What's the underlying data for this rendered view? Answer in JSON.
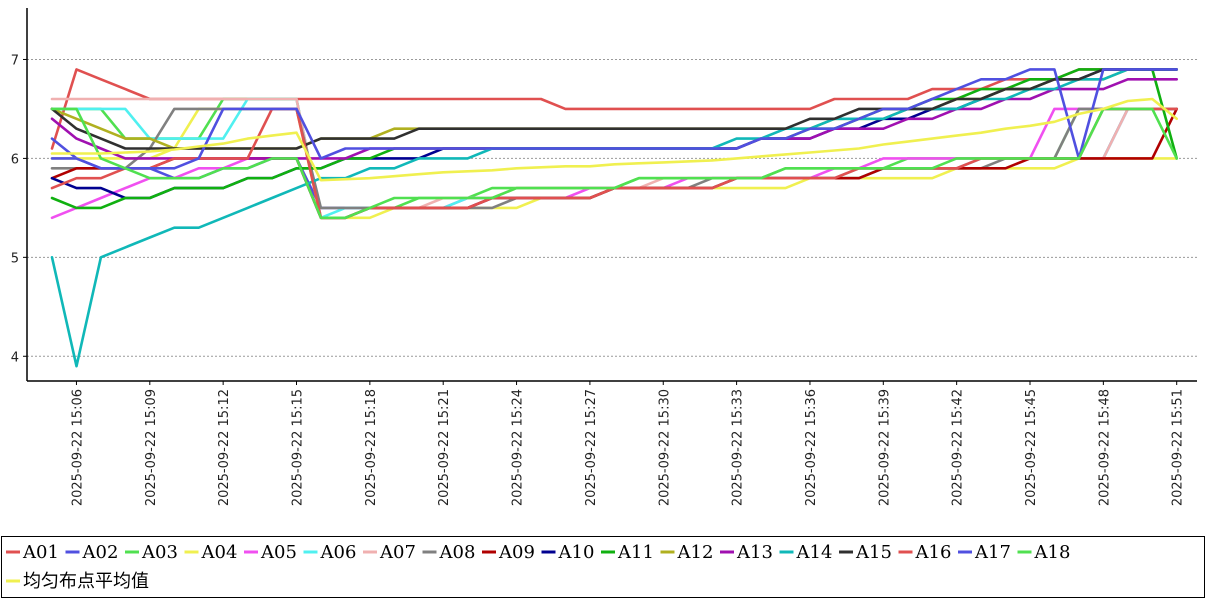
{
  "chart_data": {
    "type": "line",
    "title": "",
    "xlabel": "",
    "ylabel": "",
    "ylim": [
      3.75,
      7.5
    ],
    "yticks": [
      4,
      5,
      6,
      7
    ],
    "grid": "horizontal dotted",
    "legend_position": "bottom",
    "x": [
      "2025-09-22 15:05",
      "2025-09-22 15:06",
      "2025-09-22 15:07",
      "2025-09-22 15:08",
      "2025-09-22 15:09",
      "2025-09-22 15:10",
      "2025-09-22 15:11",
      "2025-09-22 15:12",
      "2025-09-22 15:13",
      "2025-09-22 15:14",
      "2025-09-22 15:15",
      "2025-09-22 15:16",
      "2025-09-22 15:17",
      "2025-09-22 15:18",
      "2025-09-22 15:19",
      "2025-09-22 15:20",
      "2025-09-22 15:21",
      "2025-09-22 15:22",
      "2025-09-22 15:23",
      "2025-09-22 15:24",
      "2025-09-22 15:25",
      "2025-09-22 15:26",
      "2025-09-22 15:27",
      "2025-09-22 15:28",
      "2025-09-22 15:29",
      "2025-09-22 15:30",
      "2025-09-22 15:31",
      "2025-09-22 15:32",
      "2025-09-22 15:33",
      "2025-09-22 15:34",
      "2025-09-22 15:35",
      "2025-09-22 15:36",
      "2025-09-22 15:37",
      "2025-09-22 15:38",
      "2025-09-22 15:39",
      "2025-09-22 15:40",
      "2025-09-22 15:41",
      "2025-09-22 15:42",
      "2025-09-22 15:43",
      "2025-09-22 15:44",
      "2025-09-22 15:45",
      "2025-09-22 15:46",
      "2025-09-22 15:47",
      "2025-09-22 15:48",
      "2025-09-22 15:49",
      "2025-09-22 15:50",
      "2025-09-22 15:51"
    ],
    "xtick_labels": [
      "2025-09-22 15:06",
      "2025-09-22 15:09",
      "2025-09-22 15:12",
      "2025-09-22 15:15",
      "2025-09-22 15:18",
      "2025-09-22 15:21",
      "2025-09-22 15:24",
      "2025-09-22 15:27",
      "2025-09-22 15:30",
      "2025-09-22 15:33",
      "2025-09-22 15:36",
      "2025-09-22 15:39",
      "2025-09-22 15:42",
      "2025-09-22 15:45",
      "2025-09-22 15:48",
      "2025-09-22 15:51"
    ],
    "series": [
      {
        "name": "A01",
        "color": "#e05050",
        "values": [
          6.1,
          6.9,
          6.8,
          6.7,
          6.6,
          6.6,
          6.6,
          6.6,
          6.6,
          6.6,
          6.6,
          6.6,
          6.6,
          6.6,
          6.6,
          6.6,
          6.6,
          6.6,
          6.6,
          6.6,
          6.6,
          6.5,
          6.5,
          6.5,
          6.5,
          6.5,
          6.5,
          6.5,
          6.5,
          6.5,
          6.5,
          6.5,
          6.6,
          6.6,
          6.6,
          6.6,
          6.7,
          6.7,
          6.7,
          6.8,
          6.8,
          6.8,
          6.9,
          6.9,
          6.9,
          6.9,
          6.9
        ]
      },
      {
        "name": "A02",
        "color": "#5050e0",
        "values": [
          6.2,
          6.0,
          5.9,
          5.9,
          5.9,
          5.8,
          5.8,
          5.9,
          5.9,
          6.0,
          6.0,
          5.5,
          5.5,
          5.5,
          5.5,
          5.5,
          5.5,
          5.5,
          5.6,
          5.6,
          5.6,
          5.6,
          5.6,
          5.7,
          5.7,
          5.7,
          5.7,
          5.7,
          5.8,
          5.8,
          5.8,
          5.8,
          5.8,
          5.9,
          5.9,
          5.9,
          5.9,
          5.9,
          6.0,
          6.0,
          6.0,
          6.0,
          6.0,
          6.0,
          6.5,
          6.5,
          6.5
        ]
      },
      {
        "name": "A03",
        "color": "#50e050",
        "values": [
          6.5,
          6.5,
          6.5,
          6.2,
          6.2,
          6.2,
          6.2,
          6.6,
          6.6,
          6.6,
          6.6,
          5.4,
          5.4,
          5.5,
          5.5,
          5.6,
          5.6,
          5.6,
          5.7,
          5.7,
          5.7,
          5.7,
          5.7,
          5.7,
          5.8,
          5.8,
          5.8,
          5.8,
          5.8,
          5.8,
          5.9,
          5.9,
          5.9,
          5.9,
          5.9,
          6.0,
          6.0,
          6.0,
          6.0,
          6.0,
          6.0,
          6.0,
          6.5,
          6.5,
          6.5,
          6.5,
          6.5
        ]
      },
      {
        "name": "A04",
        "color": "#f0f050",
        "values": [
          6.0,
          6.0,
          6.0,
          6.0,
          6.0,
          6.1,
          6.5,
          6.5,
          6.5,
          6.5,
          6.5,
          5.4,
          5.4,
          5.4,
          5.5,
          5.5,
          5.5,
          5.5,
          5.5,
          5.5,
          5.6,
          5.6,
          5.6,
          5.7,
          5.7,
          5.7,
          5.7,
          5.7,
          5.7,
          5.7,
          5.7,
          5.8,
          5.8,
          5.8,
          5.8,
          5.8,
          5.8,
          5.9,
          5.9,
          5.9,
          5.9,
          5.9,
          6.0,
          6.0,
          6.0,
          6.0,
          6.0
        ]
      },
      {
        "name": "A05",
        "color": "#f050f0",
        "values": [
          5.4,
          5.5,
          5.6,
          5.7,
          5.8,
          5.8,
          5.9,
          5.9,
          6.0,
          6.0,
          6.0,
          5.4,
          5.4,
          5.5,
          5.5,
          5.5,
          5.5,
          5.6,
          5.6,
          5.6,
          5.6,
          5.6,
          5.7,
          5.7,
          5.7,
          5.7,
          5.8,
          5.8,
          5.8,
          5.8,
          5.8,
          5.8,
          5.9,
          5.9,
          6.0,
          6.0,
          6.0,
          6.0,
          6.0,
          6.0,
          6.0,
          6.5,
          6.5,
          6.5,
          6.5,
          6.5,
          6.5
        ]
      },
      {
        "name": "A06",
        "color": "#50f0f0",
        "values": [
          6.5,
          6.5,
          6.5,
          6.5,
          6.2,
          6.2,
          6.2,
          6.2,
          6.6,
          6.6,
          6.6,
          5.4,
          5.5,
          5.5,
          5.5,
          5.5,
          5.5,
          5.6,
          5.6,
          5.6,
          5.6,
          5.6,
          5.6,
          5.7,
          5.7,
          5.7,
          5.7,
          5.7,
          5.8,
          5.8,
          5.8,
          5.8,
          5.8,
          5.8,
          5.9,
          5.9,
          5.9,
          5.9,
          6.0,
          6.0,
          6.0,
          6.0,
          6.0,
          6.0,
          6.5,
          6.5,
          6.5
        ]
      },
      {
        "name": "A07",
        "color": "#f0b0b0",
        "values": [
          6.6,
          6.6,
          6.6,
          6.6,
          6.6,
          6.6,
          6.6,
          6.6,
          6.6,
          6.6,
          6.6,
          5.4,
          5.4,
          5.5,
          5.5,
          5.5,
          5.6,
          5.6,
          5.6,
          5.7,
          5.7,
          5.7,
          5.7,
          5.7,
          5.7,
          5.8,
          5.8,
          5.8,
          5.8,
          5.8,
          5.8,
          5.8,
          5.8,
          5.9,
          5.9,
          5.9,
          5.9,
          5.9,
          6.0,
          6.0,
          6.0,
          6.0,
          6.0,
          6.0,
          6.5,
          6.5,
          6.5
        ]
      },
      {
        "name": "A08",
        "color": "#808080",
        "values": [
          5.9,
          5.9,
          5.9,
          5.9,
          6.1,
          6.5,
          6.5,
          6.5,
          6.5,
          6.5,
          6.5,
          5.5,
          5.5,
          5.5,
          5.5,
          5.5,
          5.5,
          5.5,
          5.5,
          5.6,
          5.6,
          5.6,
          5.6,
          5.7,
          5.7,
          5.7,
          5.7,
          5.8,
          5.8,
          5.8,
          5.8,
          5.8,
          5.8,
          5.8,
          5.9,
          5.9,
          5.9,
          5.9,
          5.9,
          6.0,
          6.0,
          6.0,
          6.5,
          6.5,
          6.5,
          6.5,
          6.5
        ]
      },
      {
        "name": "A09",
        "color": "#b00000",
        "values": [
          5.8,
          5.9,
          5.9,
          5.9,
          5.9,
          6.0,
          6.0,
          6.0,
          6.0,
          6.0,
          6.0,
          5.4,
          5.4,
          5.5,
          5.5,
          5.5,
          5.5,
          5.5,
          5.6,
          5.6,
          5.6,
          5.6,
          5.6,
          5.7,
          5.7,
          5.7,
          5.7,
          5.7,
          5.8,
          5.8,
          5.8,
          5.8,
          5.8,
          5.8,
          5.9,
          5.9,
          5.9,
          5.9,
          5.9,
          5.9,
          6.0,
          6.0,
          6.0,
          6.0,
          6.0,
          6.0,
          6.5
        ]
      },
      {
        "name": "A10",
        "color": "#000090",
        "values": [
          5.8,
          5.7,
          5.7,
          5.6,
          5.6,
          5.7,
          5.7,
          5.7,
          5.8,
          5.8,
          5.9,
          5.9,
          6.0,
          6.0,
          6.0,
          6.0,
          6.1,
          6.1,
          6.1,
          6.1,
          6.1,
          6.1,
          6.1,
          6.1,
          6.1,
          6.1,
          6.1,
          6.1,
          6.1,
          6.2,
          6.2,
          6.2,
          6.3,
          6.3,
          6.4,
          6.4,
          6.5,
          6.5,
          6.6,
          6.7,
          6.7,
          6.8,
          6.8,
          6.9,
          6.9,
          6.9,
          6.9
        ]
      },
      {
        "name": "A11",
        "color": "#10b010",
        "values": [
          5.6,
          5.5,
          5.5,
          5.6,
          5.6,
          5.7,
          5.7,
          5.7,
          5.8,
          5.8,
          5.9,
          5.9,
          6.0,
          6.0,
          6.1,
          6.1,
          6.1,
          6.1,
          6.1,
          6.1,
          6.1,
          6.1,
          6.1,
          6.1,
          6.1,
          6.1,
          6.1,
          6.1,
          6.1,
          6.2,
          6.2,
          6.3,
          6.3,
          6.4,
          6.5,
          6.5,
          6.6,
          6.6,
          6.7,
          6.7,
          6.8,
          6.8,
          6.9,
          6.9,
          6.9,
          6.9,
          6.0
        ]
      },
      {
        "name": "A12",
        "color": "#b0b020",
        "values": [
          6.5,
          6.4,
          6.3,
          6.2,
          6.2,
          6.1,
          6.1,
          6.1,
          6.1,
          6.1,
          6.1,
          6.2,
          6.2,
          6.2,
          6.3,
          6.3,
          6.3,
          6.3,
          6.3,
          6.3,
          6.3,
          6.3,
          6.3,
          6.3,
          6.3,
          6.3,
          6.3,
          6.3,
          6.3,
          6.3,
          6.3,
          6.3,
          6.4,
          6.4,
          6.4,
          6.5,
          6.5,
          6.6,
          6.6,
          6.7,
          6.7,
          6.8,
          6.8,
          6.8,
          6.9,
          6.9,
          6.9
        ]
      },
      {
        "name": "A13",
        "color": "#a010b0",
        "values": [
          6.4,
          6.2,
          6.1,
          6.0,
          6.0,
          6.0,
          6.0,
          6.0,
          6.0,
          6.0,
          6.0,
          6.0,
          6.0,
          6.1,
          6.1,
          6.1,
          6.1,
          6.1,
          6.1,
          6.1,
          6.1,
          6.1,
          6.1,
          6.1,
          6.1,
          6.1,
          6.1,
          6.1,
          6.1,
          6.2,
          6.2,
          6.2,
          6.3,
          6.3,
          6.3,
          6.4,
          6.4,
          6.5,
          6.5,
          6.6,
          6.6,
          6.7,
          6.7,
          6.7,
          6.8,
          6.8,
          6.8
        ]
      },
      {
        "name": "A14",
        "color": "#10b8b8",
        "values": [
          5.0,
          3.9,
          5.0,
          5.1,
          5.2,
          5.3,
          5.3,
          5.4,
          5.5,
          5.6,
          5.7,
          5.8,
          5.8,
          5.9,
          5.9,
          6.0,
          6.0,
          6.0,
          6.1,
          6.1,
          6.1,
          6.1,
          6.1,
          6.1,
          6.1,
          6.1,
          6.1,
          6.1,
          6.2,
          6.2,
          6.3,
          6.3,
          6.4,
          6.4,
          6.4,
          6.5,
          6.5,
          6.5,
          6.6,
          6.6,
          6.7,
          6.7,
          6.8,
          6.8,
          6.9,
          6.9,
          6.9
        ]
      },
      {
        "name": "A15",
        "color": "#303030",
        "values": [
          6.5,
          6.3,
          6.2,
          6.1,
          6.1,
          6.1,
          6.1,
          6.1,
          6.1,
          6.1,
          6.1,
          6.2,
          6.2,
          6.2,
          6.2,
          6.3,
          6.3,
          6.3,
          6.3,
          6.3,
          6.3,
          6.3,
          6.3,
          6.3,
          6.3,
          6.3,
          6.3,
          6.3,
          6.3,
          6.3,
          6.3,
          6.4,
          6.4,
          6.5,
          6.5,
          6.5,
          6.5,
          6.6,
          6.6,
          6.7,
          6.7,
          6.8,
          6.8,
          6.9,
          6.9,
          6.9,
          6.9
        ]
      },
      {
        "name": "A16",
        "color": "#e05050",
        "values": [
          5.7,
          5.8,
          5.8,
          5.9,
          5.9,
          6.0,
          6.0,
          6.0,
          6.0,
          6.5,
          6.5,
          5.4,
          5.4,
          5.5,
          5.5,
          5.5,
          5.5,
          5.5,
          5.6,
          5.6,
          5.6,
          5.6,
          5.6,
          5.7,
          5.7,
          5.7,
          5.7,
          5.7,
          5.8,
          5.8,
          5.8,
          5.8,
          5.8,
          5.9,
          5.9,
          5.9,
          5.9,
          5.9,
          6.0,
          6.0,
          6.0,
          6.0,
          6.0,
          6.5,
          6.5,
          6.5,
          6.5
        ]
      },
      {
        "name": "A17",
        "color": "#5050e0",
        "values": [
          6.0,
          6.0,
          5.9,
          5.9,
          5.9,
          5.9,
          6.0,
          6.5,
          6.5,
          6.5,
          6.5,
          6.0,
          6.1,
          6.1,
          6.1,
          6.1,
          6.1,
          6.1,
          6.1,
          6.1,
          6.1,
          6.1,
          6.1,
          6.1,
          6.1,
          6.1,
          6.1,
          6.1,
          6.1,
          6.2,
          6.2,
          6.3,
          6.3,
          6.4,
          6.5,
          6.5,
          6.6,
          6.7,
          6.8,
          6.8,
          6.9,
          6.9,
          6.0,
          6.9,
          6.9,
          6.9,
          6.9
        ]
      },
      {
        "name": "A18",
        "color": "#50e050",
        "values": [
          6.5,
          6.5,
          6.0,
          5.9,
          5.8,
          5.8,
          5.8,
          5.9,
          5.9,
          6.0,
          6.0,
          5.4,
          5.4,
          5.5,
          5.6,
          5.6,
          5.6,
          5.6,
          5.6,
          5.7,
          5.7,
          5.7,
          5.7,
          5.7,
          5.8,
          5.8,
          5.8,
          5.8,
          5.8,
          5.8,
          5.9,
          5.9,
          5.9,
          5.9,
          5.9,
          5.9,
          5.9,
          6.0,
          6.0,
          6.0,
          6.0,
          6.0,
          6.0,
          6.5,
          6.5,
          6.5,
          6.0
        ]
      },
      {
        "name": "均匀布点平均值",
        "color": "#f0f050",
        "values": [
          6.05,
          6.05,
          6.05,
          6.06,
          6.07,
          6.09,
          6.12,
          6.15,
          6.2,
          6.23,
          6.26,
          5.78,
          5.79,
          5.8,
          5.82,
          5.84,
          5.86,
          5.87,
          5.88,
          5.9,
          5.91,
          5.92,
          5.92,
          5.94,
          5.95,
          5.96,
          5.97,
          5.98,
          6.0,
          6.02,
          6.04,
          6.06,
          6.08,
          6.1,
          6.14,
          6.17,
          6.2,
          6.23,
          6.26,
          6.3,
          6.33,
          6.37,
          6.45,
          6.5,
          6.58,
          6.6,
          6.4
        ]
      }
    ]
  }
}
